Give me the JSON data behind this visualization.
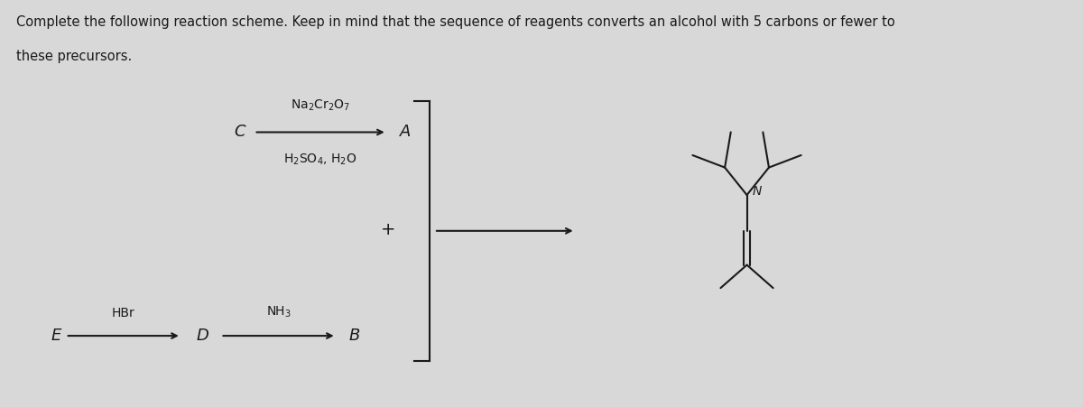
{
  "background_color": "#d8d8d8",
  "title_line1": "Complete the following reaction scheme. Keep in mind that the sequence of reagents converts an alcohol with 5 carbons or fewer to",
  "title_line2": "these precursors.",
  "title_fontsize": 10.5,
  "text_color": "#1a1a1a",
  "reagent1_line1": "Na$_2$Cr$_2$O$_7$",
  "reagent1_line2": "H$_2$SO$_4$, H$_2$O",
  "reagent2": "HBr",
  "reagent3": "NH$_3$",
  "label_C": "C",
  "label_A": "A",
  "label_D": "D",
  "label_B": "B",
  "label_E": "E",
  "label_plus": "+",
  "label_N": "N",
  "mol_nx": 8.7,
  "mol_ny": 2.35
}
